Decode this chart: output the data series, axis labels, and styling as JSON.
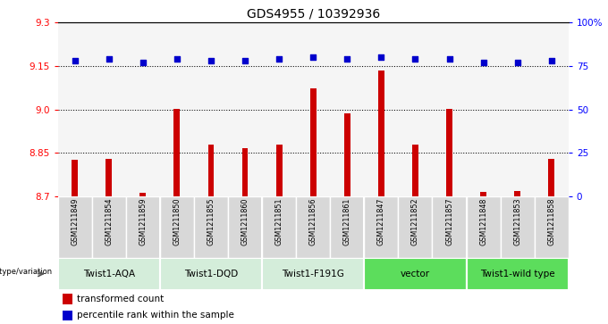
{
  "title": "GDS4955 / 10392936",
  "samples": [
    "GSM1211849",
    "GSM1211854",
    "GSM1211859",
    "GSM1211850",
    "GSM1211855",
    "GSM1211860",
    "GSM1211851",
    "GSM1211856",
    "GSM1211861",
    "GSM1211847",
    "GSM1211852",
    "GSM1211857",
    "GSM1211848",
    "GSM1211853",
    "GSM1211858"
  ],
  "bar_values": [
    8.825,
    8.828,
    8.712,
    9.002,
    8.877,
    8.867,
    8.877,
    9.072,
    8.987,
    9.133,
    8.877,
    9.002,
    8.715,
    8.718,
    8.828
  ],
  "percentile_values": [
    78,
    79,
    77,
    79,
    78,
    78,
    79,
    80,
    79,
    80,
    79,
    79,
    77,
    77,
    78
  ],
  "groups": [
    {
      "label": "Twist1-AQA",
      "start": 0,
      "end": 3,
      "color": "#c8e6c9"
    },
    {
      "label": "Twist1-DQD",
      "start": 3,
      "end": 6,
      "color": "#c8e6c9"
    },
    {
      "label": "Twist1-F191G",
      "start": 6,
      "end": 9,
      "color": "#c8e6c9"
    },
    {
      "label": "vector",
      "start": 9,
      "end": 12,
      "color": "#66dd66"
    },
    {
      "label": "Twist1-wild type",
      "start": 12,
      "end": 15,
      "color": "#66dd66"
    }
  ],
  "bar_color": "#cc0000",
  "dot_color": "#0000cc",
  "bar_base": 8.7,
  "ylim_left": [
    8.7,
    9.3
  ],
  "ylim_right": [
    0,
    100
  ],
  "yticks_left": [
    8.7,
    8.85,
    9.0,
    9.15,
    9.3
  ],
  "yticks_right": [
    0,
    25,
    50,
    75,
    100
  ],
  "grid_lines": [
    8.85,
    9.0,
    9.15
  ],
  "group_boundaries": [
    3,
    6,
    9,
    12
  ],
  "genotype_label": "genotype/variation",
  "legend_items": [
    {
      "color": "#cc0000",
      "label": "transformed count"
    },
    {
      "color": "#0000cc",
      "label": "percentile rank within the sample"
    }
  ],
  "sample_bg_color": "#d8d8d8",
  "cell_border_color": "#ffffff"
}
